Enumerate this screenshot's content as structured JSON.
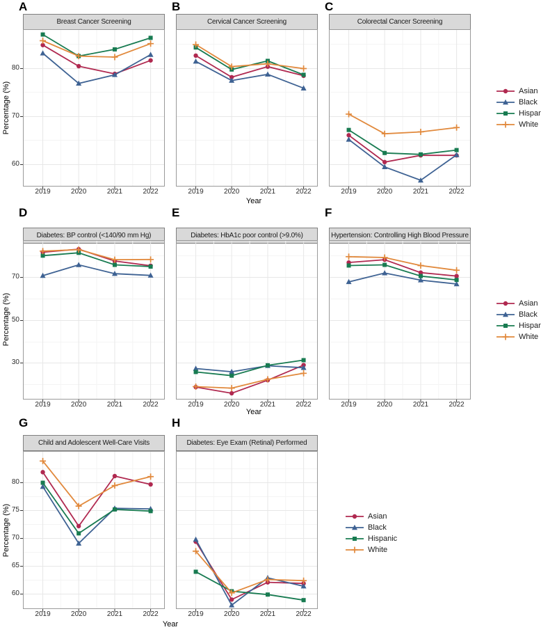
{
  "axes": {
    "x_label": "Year",
    "y_label": "Percentage (%)",
    "x_ticks": [
      "2019",
      "2020",
      "2021",
      "2022"
    ]
  },
  "legend": {
    "entries": [
      {
        "label": "Asian",
        "color": "#b02950",
        "marker": "circle"
      },
      {
        "label": "Black",
        "color": "#3e6293",
        "marker": "triangle"
      },
      {
        "label": "Hispanic",
        "color": "#187b51",
        "marker": "square"
      },
      {
        "label": "White",
        "color": "#e1893c",
        "marker": "plus"
      }
    ]
  },
  "chart_data": [
    {
      "panel_label": "A",
      "title": "Breast Cancer Screening",
      "type": "line",
      "x": [
        2019,
        2020,
        2021,
        2022
      ],
      "ylim": [
        55.3,
        88.1
      ],
      "yticks": [
        60,
        70,
        80
      ],
      "yticks_minor": [
        65,
        75,
        85
      ],
      "series": [
        {
          "name": "Asian",
          "values": [
            84.8,
            80.4,
            78.8,
            81.6
          ]
        },
        {
          "name": "Black",
          "values": [
            83.1,
            76.8,
            78.6,
            82.8
          ]
        },
        {
          "name": "Hispanic",
          "values": [
            87.0,
            82.5,
            83.9,
            86.3
          ]
        },
        {
          "name": "White",
          "values": [
            85.7,
            82.5,
            82.3,
            85.1
          ]
        }
      ]
    },
    {
      "panel_label": "B",
      "title": "Cervical Cancer Screening",
      "type": "line",
      "x": [
        2019,
        2020,
        2021,
        2022
      ],
      "ylim": [
        55.3,
        88.1
      ],
      "yticks": [
        60,
        70,
        80
      ],
      "yticks_minor": [
        65,
        75,
        85
      ],
      "series": [
        {
          "name": "Asian",
          "values": [
            82.6,
            78.1,
            80.3,
            78.4
          ]
        },
        {
          "name": "Black",
          "values": [
            81.4,
            77.4,
            78.7,
            75.8
          ]
        },
        {
          "name": "Hispanic",
          "values": [
            84.3,
            79.7,
            81.5,
            78.6
          ]
        },
        {
          "name": "White",
          "values": [
            84.9,
            80.3,
            80.9,
            79.9
          ]
        }
      ]
    },
    {
      "panel_label": "C",
      "title": "Colorectal Cancer Screening",
      "type": "line",
      "x": [
        2019,
        2020,
        2021,
        2022
      ],
      "ylim": [
        55.3,
        88.1
      ],
      "yticks": [
        60,
        70,
        80
      ],
      "yticks_minor": [
        65,
        75,
        85
      ],
      "series": [
        {
          "name": "Asian",
          "values": [
            66.0,
            60.4,
            61.8,
            61.8
          ]
        },
        {
          "name": "Black",
          "values": [
            65.1,
            59.4,
            56.6,
            61.9
          ]
        },
        {
          "name": "Hispanic",
          "values": [
            67.1,
            62.3,
            62.0,
            62.9
          ]
        },
        {
          "name": "White",
          "values": [
            70.4,
            66.3,
            66.7,
            67.6
          ]
        }
      ]
    },
    {
      "panel_label": "D",
      "title": "Diabetes: BP control (<140/90 mm Hg)",
      "type": "line",
      "x": [
        2019,
        2020,
        2021,
        2022
      ],
      "ylim": [
        13.0,
        87.1
      ],
      "yticks": [
        30,
        50,
        70
      ],
      "yticks_minor": [
        20,
        40,
        60,
        80
      ],
      "series": [
        {
          "name": "Asian",
          "values": [
            81.5,
            82.9,
            77.4,
            75.2
          ]
        },
        {
          "name": "Black",
          "values": [
            70.6,
            75.6,
            71.5,
            70.7
          ]
        },
        {
          "name": "Hispanic",
          "values": [
            79.9,
            81.2,
            75.6,
            74.8
          ]
        },
        {
          "name": "White",
          "values": [
            82.0,
            82.7,
            78.0,
            78.1
          ]
        }
      ]
    },
    {
      "panel_label": "E",
      "title": "Diabetes: HbA1c poor control (>9.0%)",
      "type": "line",
      "x": [
        2019,
        2020,
        2021,
        2022
      ],
      "ylim": [
        13.0,
        87.1
      ],
      "yticks": [
        30,
        50,
        70
      ],
      "yticks_minor": [
        20,
        40,
        60,
        80
      ],
      "series": [
        {
          "name": "Asian",
          "values": [
            18.8,
            15.9,
            22.0,
            29.0
          ]
        },
        {
          "name": "Black",
          "values": [
            27.4,
            25.9,
            28.7,
            27.8
          ]
        },
        {
          "name": "Hispanic",
          "values": [
            25.8,
            24.1,
            28.9,
            31.3
          ]
        },
        {
          "name": "White",
          "values": [
            19.0,
            18.3,
            22.4,
            25.2
          ]
        }
      ]
    },
    {
      "panel_label": "F",
      "title": "Hypertension: Controlling High Blood Pressure",
      "type": "line",
      "x": [
        2019,
        2020,
        2021,
        2022
      ],
      "ylim": [
        13.0,
        87.1
      ],
      "yticks": [
        30,
        50,
        70
      ],
      "yticks_minor": [
        20,
        40,
        60,
        80
      ],
      "series": [
        {
          "name": "Asian",
          "values": [
            76.7,
            78.0,
            72.0,
            70.4
          ]
        },
        {
          "name": "Black",
          "values": [
            67.7,
            71.8,
            68.5,
            66.7
          ]
        },
        {
          "name": "Hispanic",
          "values": [
            75.3,
            75.6,
            70.4,
            68.6
          ]
        },
        {
          "name": "White",
          "values": [
            79.4,
            79.0,
            75.3,
            73.1
          ]
        }
      ]
    },
    {
      "panel_label": "G",
      "title": "Child and Adolescent Well-Care Visits",
      "type": "line",
      "x": [
        2019,
        2020,
        2021,
        2022
      ],
      "ylim": [
        57.2,
        85.6
      ],
      "yticks": [
        60,
        65,
        70,
        75,
        80
      ],
      "yticks_minor": [
        62.5,
        67.5,
        72.5,
        77.5,
        82.5
      ],
      "series": [
        {
          "name": "Asian",
          "values": [
            81.8,
            72.1,
            81.1,
            79.6
          ]
        },
        {
          "name": "Black",
          "values": [
            79.2,
            69.0,
            75.3,
            75.2
          ]
        },
        {
          "name": "Hispanic",
          "values": [
            79.9,
            70.8,
            75.1,
            74.8
          ]
        },
        {
          "name": "White",
          "values": [
            83.8,
            75.7,
            79.4,
            81.0
          ]
        }
      ]
    },
    {
      "panel_label": "H",
      "title": "Diabetes: Eye Exam (Retinal) Performed",
      "type": "line",
      "x": [
        2019,
        2020,
        2021,
        2022
      ],
      "ylim": [
        57.2,
        85.6
      ],
      "yticks": [
        60,
        65,
        70,
        75,
        80
      ],
      "yticks_minor": [
        62.5,
        67.5,
        72.5,
        77.5,
        82.5
      ],
      "series": [
        {
          "name": "Asian",
          "values": [
            69.3,
            58.9,
            62.0,
            61.8
          ]
        },
        {
          "name": "Black",
          "values": [
            69.7,
            57.9,
            62.8,
            61.3
          ]
        },
        {
          "name": "Hispanic",
          "values": [
            63.9,
            60.4,
            59.8,
            58.8
          ]
        },
        {
          "name": "White",
          "values": [
            67.6,
            60.1,
            62.5,
            62.3
          ]
        }
      ]
    }
  ]
}
